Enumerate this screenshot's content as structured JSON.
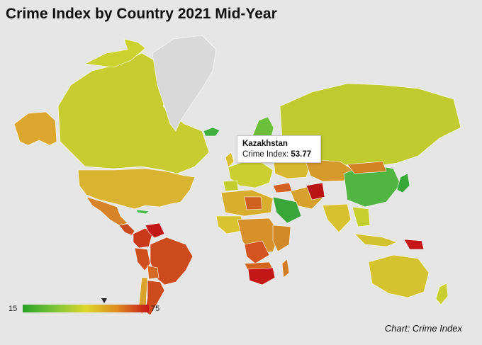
{
  "title": "Crime Index by Country 2021 Mid-Year",
  "tooltip": {
    "country": "Kazakhstan",
    "label": "Crime Index:",
    "value": "53.77"
  },
  "legend": {
    "min": "15",
    "max": "75",
    "marker_value": 53.77,
    "colors": {
      "low": "#27a327",
      "mid": "#dcd82a",
      "high": "#c41818"
    }
  },
  "credit": "Chart: Crime Index",
  "colors": {
    "background": "#e6e6e6",
    "no_data": "#d9d9d9"
  }
}
